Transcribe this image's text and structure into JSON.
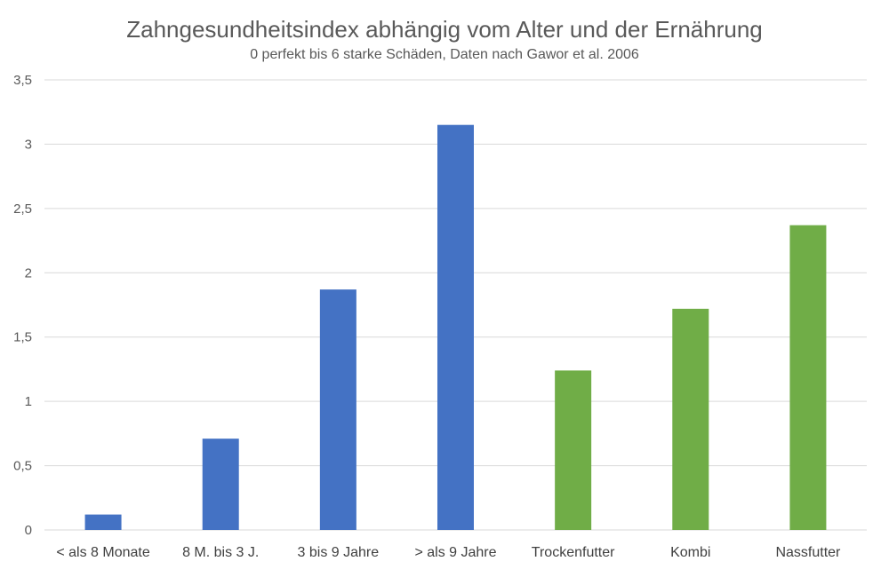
{
  "chart_data": {
    "type": "bar",
    "title": "Zahngesundheitsindex abhängig vom Alter und der Ernährung",
    "subtitle": "0 perfekt bis 6 starke Schäden, Daten nach Gawor et al. 2006",
    "categories": [
      "< als 8 Monate",
      "8 M. bis 3 J.",
      "3 bis 9 Jahre",
      "> als 9 Jahre",
      "Trockenfutter",
      "Kombi",
      "Nassfutter"
    ],
    "values": [
      0.12,
      0.71,
      1.87,
      3.15,
      1.24,
      1.72,
      2.37
    ],
    "bar_colors": [
      "#4472C4",
      "#4472C4",
      "#4472C4",
      "#4472C4",
      "#70AD47",
      "#70AD47",
      "#70AD47"
    ],
    "ylim": [
      0,
      3.5
    ],
    "y_ticks": [
      0,
      0.5,
      1,
      1.5,
      2,
      2.5,
      3,
      3.5
    ],
    "y_tick_labels": [
      "0",
      "0,5",
      "1",
      "1,5",
      "2",
      "2,5",
      "3",
      "3,5"
    ],
    "grid": true,
    "xlabel": "",
    "ylabel": ""
  }
}
